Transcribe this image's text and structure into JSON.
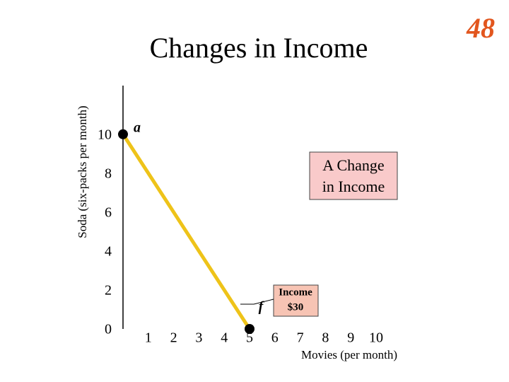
{
  "page_number": "48",
  "chart_data": {
    "type": "line",
    "title": "Changes in Income",
    "y_label": "Soda (six-packs per month)",
    "x_label": "Movies (per month)",
    "x": [
      0,
      5
    ],
    "series": [
      {
        "color": "#eec319",
        "values": [
          10,
          0
        ]
      }
    ],
    "point_labels": [
      "a",
      "f"
    ],
    "xlim": [
      0,
      10
    ],
    "ylim": [
      0,
      12.5
    ],
    "xticks": [
      1,
      2,
      3,
      4,
      5,
      6,
      7,
      8,
      9,
      10
    ],
    "yticks": [
      0,
      2,
      4,
      6,
      8,
      10
    ],
    "annotations": [
      [
        "A Change",
        "in Income"
      ],
      [
        "Income",
        "$30"
      ]
    ]
  }
}
